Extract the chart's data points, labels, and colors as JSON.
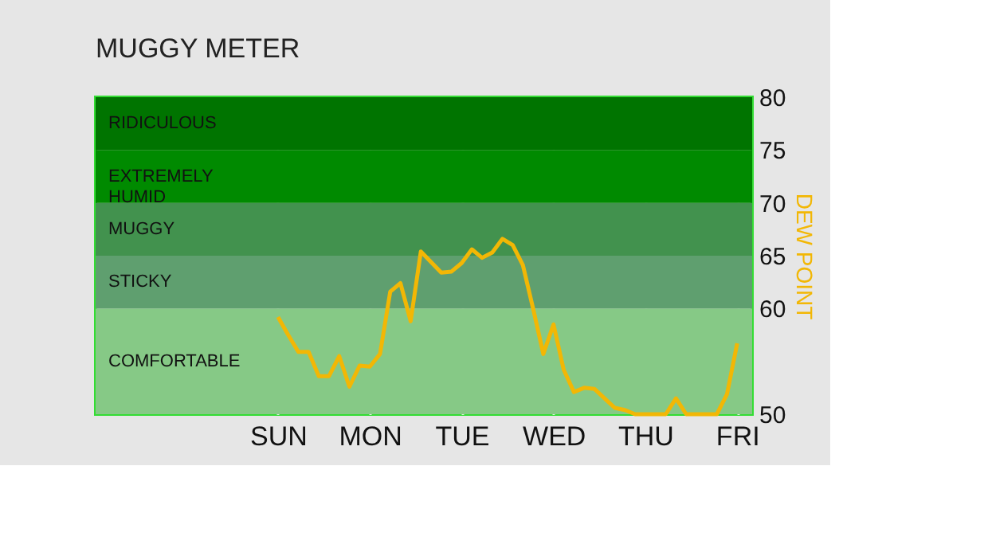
{
  "chart_data": {
    "type": "line",
    "title": "MUGGY METER",
    "ylabel": "DEW POINT",
    "categories": [
      "SUN",
      null,
      null,
      null,
      null,
      null,
      null,
      null,
      null,
      "MON",
      null,
      null,
      null,
      null,
      null,
      null,
      null,
      null,
      "TUE",
      null,
      null,
      null,
      null,
      null,
      null,
      null,
      null,
      "WED",
      null,
      null,
      null,
      null,
      null,
      null,
      null,
      null,
      "THU",
      null,
      null,
      null,
      null,
      null,
      null,
      null,
      null,
      "FRI"
    ],
    "series": [
      {
        "color": "#f2b705",
        "values": [
          59.2,
          57.5,
          55.9,
          55.9,
          53.6,
          53.6,
          55.5,
          52.6,
          54.6,
          54.5,
          55.7,
          61.6,
          62.4,
          58.8,
          65.4,
          64.4,
          63.4,
          63.5,
          64.3,
          65.6,
          64.8,
          65.3,
          66.6,
          66.0,
          64.1,
          60.0,
          55.7,
          58.5,
          54.2,
          52.1,
          52.5,
          52.4,
          51.5,
          50.6,
          50.4,
          50,
          50,
          50,
          50,
          51.5,
          50,
          50,
          50,
          50,
          51.9,
          56.7
        ]
      }
    ],
    "ylim": [
      50,
      80
    ],
    "yticks": [
      50,
      60,
      65,
      70,
      75,
      80
    ],
    "grid": "x",
    "legend": false,
    "marker": "none",
    "line_style": "solid",
    "bands": [
      {
        "axis": "y",
        "from": 50,
        "to": 60,
        "label": "COMFORTABLE",
        "color": "#86c986"
      },
      {
        "axis": "y",
        "from": 60,
        "to": 65,
        "label": "STICKY",
        "color": "#5f9f6f"
      },
      {
        "axis": "y",
        "from": 65,
        "to": 70,
        "label": "MUGGY",
        "color": "#42924e"
      },
      {
        "axis": "y",
        "from": 70,
        "to": 75,
        "label": "EXTREMELY HUMID",
        "color": "#008a00"
      },
      {
        "axis": "y",
        "from": 75,
        "to": 80,
        "label": "RIDICULOUS",
        "color": "#007400"
      }
    ]
  }
}
